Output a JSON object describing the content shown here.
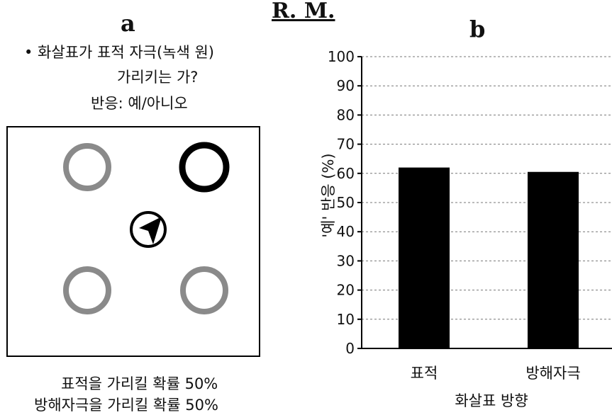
{
  "header": {
    "label": "R. M."
  },
  "panel_a": {
    "letter": "a",
    "question_line1": "• 화살표가 표적 자극(녹색 원)",
    "question_line2": "가리키는 가?",
    "response": "반응: 예/아니오",
    "caption_line1": "표적을 가리킬 확률 50%",
    "caption_line2": "방해자극을 가리킬 확률 50%"
  },
  "panel_b": {
    "letter": "b"
  },
  "chart_data": {
    "type": "bar",
    "categories": [
      "표적",
      "방해자극"
    ],
    "values": [
      62,
      60.5
    ],
    "xlabel": "화살표 방향",
    "ylabel": "'예' 반응 (%)",
    "ylim": [
      0,
      100
    ],
    "yticks": [
      "0",
      "10",
      "20",
      "30",
      "40",
      "50",
      "60",
      "70",
      "80",
      "90",
      "100"
    ],
    "grid": true,
    "bar_color": "#000000"
  }
}
